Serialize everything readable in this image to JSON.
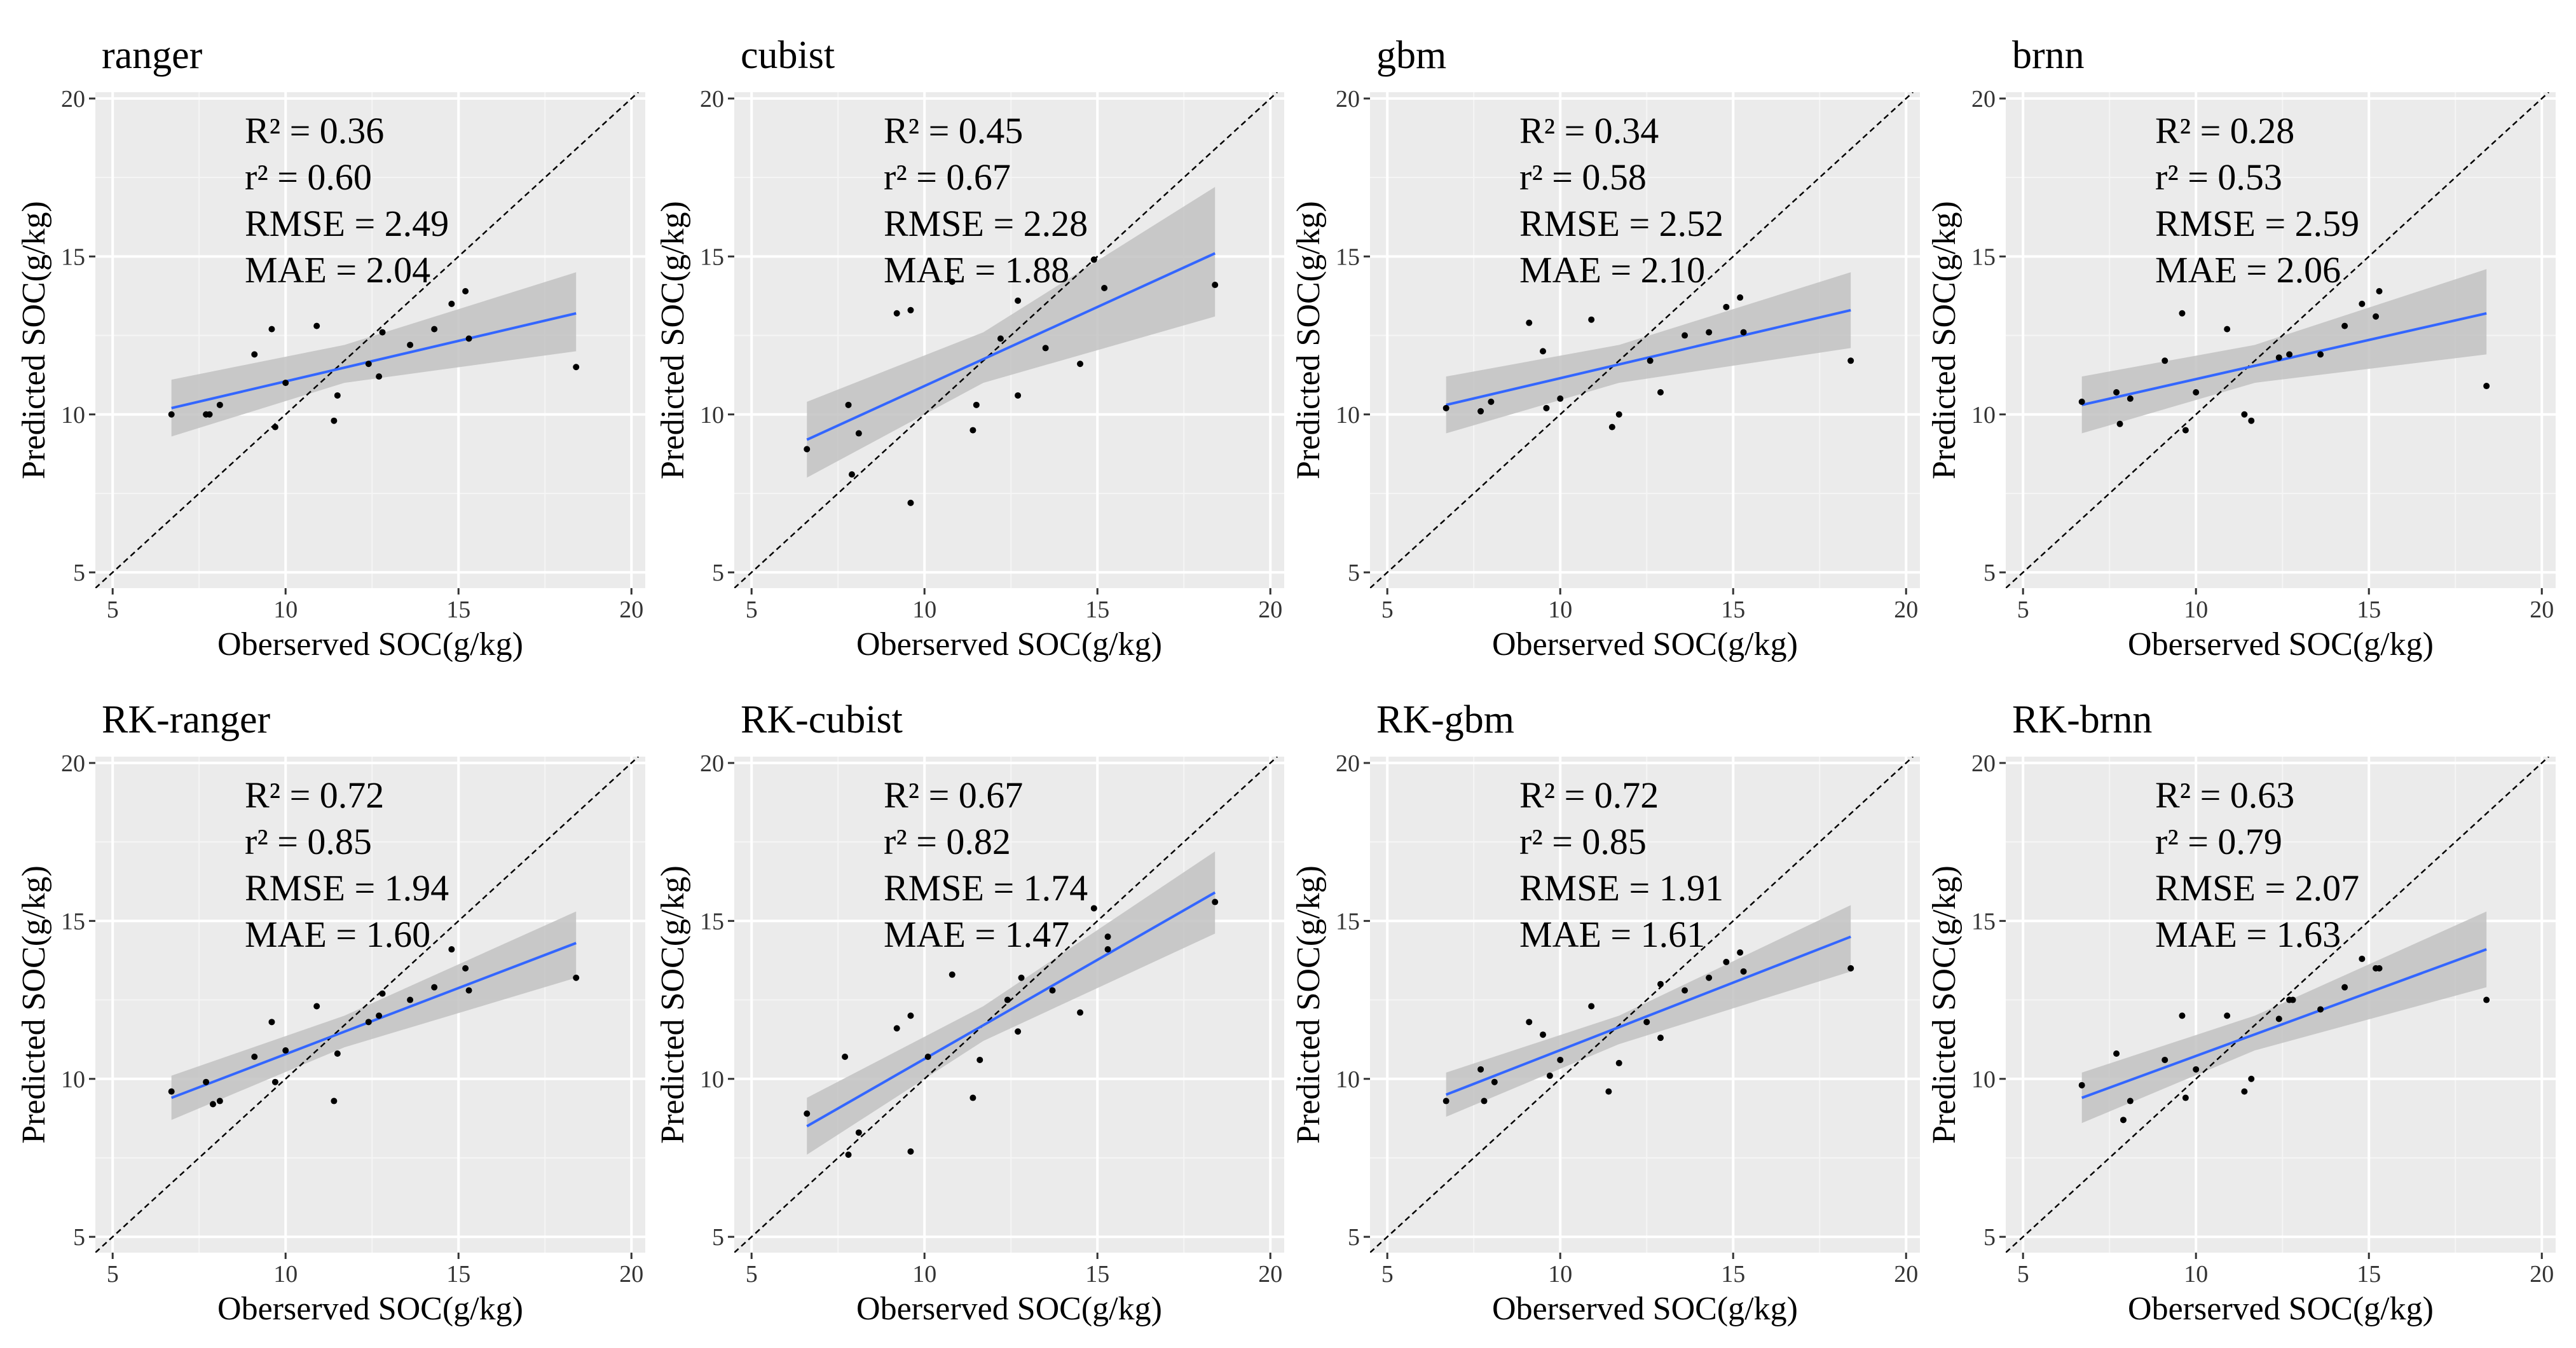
{
  "chart_data": [
    {
      "type": "scatter",
      "title": "ranger",
      "xlabel": "Oberserved SOC(g/kg)",
      "ylabel": "Predicted SOC(g/kg)",
      "xlim": [
        4.5,
        20.4
      ],
      "ylim": [
        4.5,
        20.2
      ],
      "xticks": [
        "5",
        "10",
        "15",
        "20"
      ],
      "yticks": [
        "5",
        "10",
        "15",
        "20"
      ],
      "stats": [
        "R² = 0.36",
        "r² = 0.60",
        "RMSE = 2.49",
        "MAE = 2.04"
      ],
      "points": [
        [
          6.7,
          10.0
        ],
        [
          7.7,
          10.0
        ],
        [
          7.8,
          10.0
        ],
        [
          8.1,
          10.3
        ],
        [
          9.1,
          11.9
        ],
        [
          9.6,
          12.7
        ],
        [
          9.7,
          9.6
        ],
        [
          10.0,
          11.0
        ],
        [
          10.9,
          12.8
        ],
        [
          11.4,
          9.8
        ],
        [
          11.5,
          10.6
        ],
        [
          12.4,
          11.6
        ],
        [
          12.7,
          11.2
        ],
        [
          12.8,
          12.6
        ],
        [
          13.6,
          12.2
        ],
        [
          14.3,
          12.7
        ],
        [
          14.8,
          13.5
        ],
        [
          15.2,
          13.9
        ],
        [
          15.3,
          12.4
        ],
        [
          18.4,
          11.5
        ]
      ],
      "fit": {
        "x": [
          6.7,
          18.4
        ],
        "y": [
          10.2,
          13.2
        ]
      },
      "band": {
        "x": [
          6.7,
          11.7,
          18.4
        ],
        "lower": [
          9.3,
          11.0,
          12.0
        ],
        "upper": [
          11.1,
          12.2,
          14.5
        ]
      },
      "identity_line": true
    },
    {
      "type": "scatter",
      "title": "cubist",
      "xlabel": "Oberserved SOC(g/kg)",
      "ylabel": "Predicted SOC(g/kg)",
      "xlim": [
        4.5,
        20.4
      ],
      "ylim": [
        4.5,
        20.2
      ],
      "xticks": [
        "5",
        "10",
        "15",
        "20"
      ],
      "yticks": [
        "5",
        "10",
        "15",
        "20"
      ],
      "stats": [
        "R² = 0.45",
        "r² = 0.67",
        "RMSE = 2.28",
        "MAE = 1.88"
      ],
      "points": [
        [
          6.6,
          8.9
        ],
        [
          7.8,
          10.3
        ],
        [
          7.9,
          8.1
        ],
        [
          8.1,
          9.4
        ],
        [
          9.2,
          13.2
        ],
        [
          9.6,
          13.3
        ],
        [
          9.6,
          7.2
        ],
        [
          10.8,
          14.2
        ],
        [
          11.4,
          9.5
        ],
        [
          11.5,
          10.3
        ],
        [
          12.2,
          12.4
        ],
        [
          12.7,
          10.6
        ],
        [
          12.7,
          13.6
        ],
        [
          13.5,
          12.1
        ],
        [
          14.5,
          11.6
        ],
        [
          14.9,
          14.9
        ],
        [
          15.2,
          14.0
        ],
        [
          18.4,
          14.1
        ]
      ],
      "fit": {
        "x": [
          6.6,
          18.4
        ],
        "y": [
          9.2,
          15.1
        ]
      },
      "band": {
        "x": [
          6.6,
          11.7,
          18.4
        ],
        "lower": [
          8.0,
          11.0,
          13.1
        ],
        "upper": [
          10.4,
          12.6,
          17.2
        ]
      },
      "identity_line": true
    },
    {
      "type": "scatter",
      "title": "gbm",
      "xlabel": "Oberserved SOC(g/kg)",
      "ylabel": "Predicted SOC(g/kg)",
      "xlim": [
        4.5,
        20.4
      ],
      "ylim": [
        4.5,
        20.2
      ],
      "xticks": [
        "5",
        "10",
        "15",
        "20"
      ],
      "yticks": [
        "5",
        "10",
        "15",
        "20"
      ],
      "stats": [
        "R² = 0.34",
        "r² = 0.58",
        "RMSE = 2.52",
        "MAE = 2.10"
      ],
      "points": [
        [
          6.7,
          10.2
        ],
        [
          7.7,
          10.1
        ],
        [
          8.0,
          10.4
        ],
        [
          9.1,
          12.9
        ],
        [
          9.5,
          12.0
        ],
        [
          9.6,
          10.2
        ],
        [
          10.0,
          10.5
        ],
        [
          10.9,
          13.0
        ],
        [
          11.5,
          9.6
        ],
        [
          11.7,
          10.0
        ],
        [
          12.6,
          11.7
        ],
        [
          12.9,
          10.7
        ],
        [
          13.6,
          12.5
        ],
        [
          14.3,
          12.6
        ],
        [
          14.8,
          13.4
        ],
        [
          15.2,
          13.7
        ],
        [
          15.3,
          12.6
        ],
        [
          18.4,
          11.7
        ]
      ],
      "fit": {
        "x": [
          6.7,
          18.4
        ],
        "y": [
          10.3,
          13.3
        ]
      },
      "band": {
        "x": [
          6.7,
          11.7,
          18.4
        ],
        "lower": [
          9.4,
          11.0,
          12.1
        ],
        "upper": [
          11.2,
          12.2,
          14.5
        ]
      },
      "identity_line": true
    },
    {
      "type": "scatter",
      "title": "brnn",
      "xlabel": "Oberserved SOC(g/kg)",
      "ylabel": "Predicted SOC(g/kg)",
      "xlim": [
        4.5,
        20.4
      ],
      "ylim": [
        4.5,
        20.2
      ],
      "xticks": [
        "5",
        "10",
        "15",
        "20"
      ],
      "yticks": [
        "5",
        "10",
        "15",
        "20"
      ],
      "stats": [
        "R² = 0.28",
        "r² = 0.53",
        "RMSE = 2.59",
        "MAE = 2.06"
      ],
      "points": [
        [
          6.7,
          10.4
        ],
        [
          7.7,
          10.7
        ],
        [
          7.8,
          9.7
        ],
        [
          8.1,
          10.5
        ],
        [
          9.1,
          11.7
        ],
        [
          9.6,
          13.2
        ],
        [
          9.7,
          9.5
        ],
        [
          10.0,
          10.7
        ],
        [
          10.9,
          12.7
        ],
        [
          11.4,
          10.0
        ],
        [
          11.6,
          9.8
        ],
        [
          12.4,
          11.8
        ],
        [
          12.7,
          11.9
        ],
        [
          13.6,
          11.9
        ],
        [
          14.3,
          12.8
        ],
        [
          14.8,
          13.5
        ],
        [
          15.2,
          13.1
        ],
        [
          15.3,
          13.9
        ],
        [
          18.4,
          10.9
        ]
      ],
      "fit": {
        "x": [
          6.7,
          18.4
        ],
        "y": [
          10.3,
          13.2
        ]
      },
      "band": {
        "x": [
          6.7,
          11.7,
          18.4
        ],
        "lower": [
          9.4,
          11.0,
          11.9
        ],
        "upper": [
          11.2,
          12.2,
          14.6
        ]
      },
      "identity_line": true
    },
    {
      "type": "scatter",
      "title": "RK-ranger",
      "xlabel": "Oberserved SOC(g/kg)",
      "ylabel": "Predicted SOC(g/kg)",
      "xlim": [
        4.5,
        20.4
      ],
      "ylim": [
        4.5,
        20.2
      ],
      "xticks": [
        "5",
        "10",
        "15",
        "20"
      ],
      "yticks": [
        "5",
        "10",
        "15",
        "20"
      ],
      "stats": [
        "R² = 0.72",
        "r² = 0.85",
        "RMSE = 1.94",
        "MAE = 1.60"
      ],
      "points": [
        [
          6.7,
          9.6
        ],
        [
          7.7,
          9.9
        ],
        [
          7.9,
          9.2
        ],
        [
          8.1,
          9.3
        ],
        [
          9.1,
          10.7
        ],
        [
          9.6,
          11.8
        ],
        [
          9.7,
          9.9
        ],
        [
          10.0,
          10.9
        ],
        [
          10.9,
          12.3
        ],
        [
          11.4,
          9.3
        ],
        [
          11.5,
          10.8
        ],
        [
          12.4,
          11.8
        ],
        [
          12.7,
          12.0
        ],
        [
          12.8,
          12.7
        ],
        [
          13.6,
          12.5
        ],
        [
          14.3,
          12.9
        ],
        [
          14.8,
          14.1
        ],
        [
          15.2,
          13.5
        ],
        [
          15.3,
          12.8
        ],
        [
          18.4,
          13.2
        ]
      ],
      "fit": {
        "x": [
          6.7,
          18.4
        ],
        "y": [
          9.4,
          14.3
        ]
      },
      "band": {
        "x": [
          6.7,
          11.7,
          18.4
        ],
        "lower": [
          8.7,
          11.0,
          13.2
        ],
        "upper": [
          10.1,
          12.0,
          15.3
        ]
      },
      "identity_line": true
    },
    {
      "type": "scatter",
      "title": "RK-cubist",
      "xlabel": "Oberserved SOC(g/kg)",
      "ylabel": "Predicted SOC(g/kg)",
      "xlim": [
        4.5,
        20.4
      ],
      "ylim": [
        4.5,
        20.2
      ],
      "xticks": [
        "5",
        "10",
        "15",
        "20"
      ],
      "yticks": [
        "5",
        "10",
        "15",
        "20"
      ],
      "stats": [
        "R² = 0.67",
        "r² = 0.82",
        "RMSE = 1.74",
        "MAE = 1.47"
      ],
      "points": [
        [
          6.6,
          8.9
        ],
        [
          7.7,
          10.7
        ],
        [
          7.8,
          7.6
        ],
        [
          8.1,
          8.3
        ],
        [
          9.2,
          11.6
        ],
        [
          9.6,
          12.0
        ],
        [
          9.6,
          7.7
        ],
        [
          10.1,
          10.7
        ],
        [
          10.8,
          13.3
        ],
        [
          11.4,
          9.4
        ],
        [
          11.6,
          10.6
        ],
        [
          12.4,
          12.5
        ],
        [
          12.7,
          11.5
        ],
        [
          12.8,
          13.2
        ],
        [
          13.7,
          12.8
        ],
        [
          14.5,
          12.1
        ],
        [
          14.9,
          15.4
        ],
        [
          15.3,
          14.5
        ],
        [
          15.3,
          14.1
        ],
        [
          18.4,
          15.6
        ]
      ],
      "fit": {
        "x": [
          6.6,
          18.4
        ],
        "y": [
          8.5,
          15.9
        ]
      },
      "band": {
        "x": [
          6.6,
          11.7,
          18.4
        ],
        "lower": [
          7.6,
          11.2,
          14.6
        ],
        "upper": [
          9.4,
          12.3,
          17.2
        ]
      },
      "identity_line": true
    },
    {
      "type": "scatter",
      "title": "RK-gbm",
      "xlabel": "Oberserved SOC(g/kg)",
      "ylabel": "Predicted SOC(g/kg)",
      "xlim": [
        4.5,
        20.4
      ],
      "ylim": [
        4.5,
        20.2
      ],
      "xticks": [
        "5",
        "10",
        "15",
        "20"
      ],
      "yticks": [
        "5",
        "10",
        "15",
        "20"
      ],
      "stats": [
        "R² = 0.72",
        "r² = 0.85",
        "RMSE = 1.91",
        "MAE = 1.61"
      ],
      "points": [
        [
          6.7,
          9.3
        ],
        [
          7.7,
          10.3
        ],
        [
          7.8,
          9.3
        ],
        [
          8.1,
          9.9
        ],
        [
          9.1,
          11.8
        ],
        [
          9.5,
          11.4
        ],
        [
          9.7,
          10.1
        ],
        [
          10.0,
          10.6
        ],
        [
          10.9,
          12.3
        ],
        [
          11.4,
          9.6
        ],
        [
          11.7,
          10.5
        ],
        [
          12.5,
          11.8
        ],
        [
          12.9,
          11.3
        ],
        [
          12.9,
          13.0
        ],
        [
          13.6,
          12.8
        ],
        [
          14.3,
          13.2
        ],
        [
          14.8,
          13.7
        ],
        [
          15.2,
          14.0
        ],
        [
          15.3,
          13.4
        ],
        [
          18.4,
          13.5
        ]
      ],
      "fit": {
        "x": [
          6.7,
          18.4
        ],
        "y": [
          9.5,
          14.5
        ]
      },
      "band": {
        "x": [
          6.7,
          11.7,
          18.4
        ],
        "lower": [
          8.8,
          11.1,
          13.4
        ],
        "upper": [
          10.2,
          12.0,
          15.5
        ]
      },
      "identity_line": true
    },
    {
      "type": "scatter",
      "title": "RK-brnn",
      "xlabel": "Oberserved SOC(g/kg)",
      "ylabel": "Predicted SOC(g/kg)",
      "xlim": [
        4.5,
        20.4
      ],
      "ylim": [
        4.5,
        20.2
      ],
      "xticks": [
        "5",
        "10",
        "15",
        "20"
      ],
      "yticks": [
        "5",
        "10",
        "15",
        "20"
      ],
      "stats": [
        "R² = 0.63",
        "r² = 0.79",
        "RMSE = 2.07",
        "MAE = 1.63"
      ],
      "points": [
        [
          6.7,
          9.8
        ],
        [
          7.7,
          10.8
        ],
        [
          7.9,
          8.7
        ],
        [
          8.1,
          9.3
        ],
        [
          9.1,
          10.6
        ],
        [
          9.6,
          12.0
        ],
        [
          9.7,
          9.4
        ],
        [
          10.0,
          10.3
        ],
        [
          10.9,
          12.0
        ],
        [
          11.4,
          9.6
        ],
        [
          11.6,
          10.0
        ],
        [
          12.4,
          11.9
        ],
        [
          12.7,
          12.5
        ],
        [
          12.8,
          12.5
        ],
        [
          13.6,
          12.2
        ],
        [
          14.3,
          12.9
        ],
        [
          14.8,
          13.8
        ],
        [
          15.2,
          13.5
        ],
        [
          15.3,
          13.5
        ],
        [
          18.4,
          12.5
        ]
      ],
      "fit": {
        "x": [
          6.7,
          18.4
        ],
        "y": [
          9.4,
          14.1
        ]
      },
      "band": {
        "x": [
          6.7,
          11.7,
          18.4
        ],
        "lower": [
          8.6,
          10.9,
          12.9
        ],
        "upper": [
          10.2,
          12.0,
          15.3
        ]
      },
      "identity_line": true
    }
  ]
}
